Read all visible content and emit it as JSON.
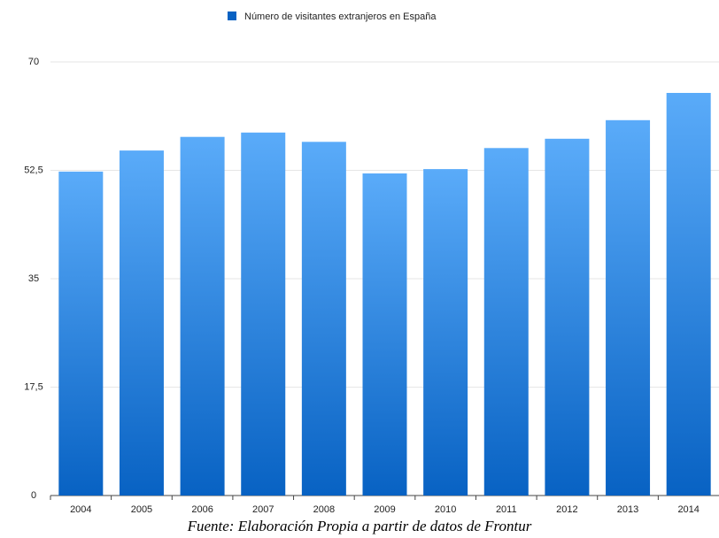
{
  "chart_data": {
    "type": "bar",
    "legend": "Número de visitantes extranjeros en España",
    "caption": "Fuente: Elaboración Propia a partir de datos de Frontur",
    "categories": [
      "2004",
      "2005",
      "2006",
      "2007",
      "2008",
      "2009",
      "2010",
      "2011",
      "2012",
      "2013",
      "2014"
    ],
    "values": [
      52.3,
      55.7,
      57.9,
      58.6,
      57.1,
      52.0,
      52.7,
      56.1,
      57.6,
      60.6,
      65.0
    ],
    "color": "#0862c3",
    "ylim": [
      0,
      70
    ],
    "yticks": [
      0,
      {
        "value": 17.5,
        "label": "17,5"
      },
      35,
      {
        "value": 52.5,
        "label": "52,5"
      },
      70
    ],
    "grid": true
  }
}
